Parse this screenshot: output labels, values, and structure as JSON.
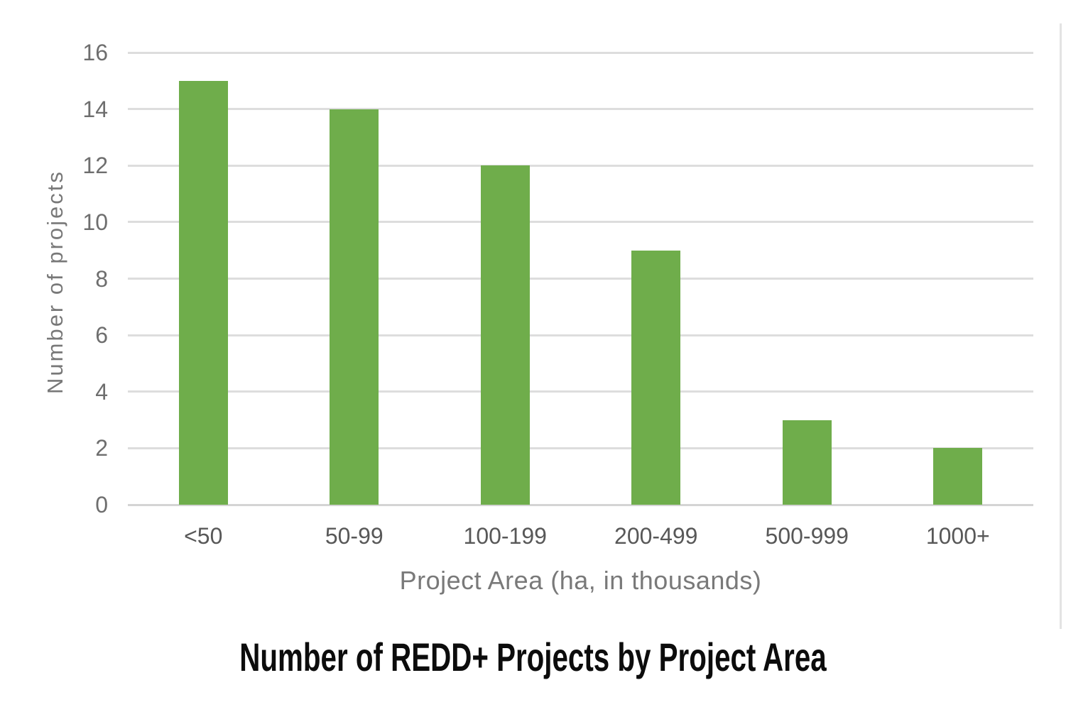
{
  "chart_data": {
    "type": "bar",
    "title": "Number of REDD+ Projects by Project Area",
    "xlabel": "Project Area (ha, in thousands)",
    "ylabel": "Number of projects",
    "categories": [
      "<50",
      "50-99",
      "100-199",
      "200-499",
      "500-999",
      "1000+"
    ],
    "values": [
      15,
      14,
      12,
      9,
      3,
      2
    ],
    "yticks": [
      0,
      2,
      4,
      6,
      8,
      10,
      12,
      14,
      16
    ],
    "ylim": [
      0,
      16
    ],
    "grid": "horizontal-only",
    "legend": "none",
    "bar_color": "#6fad4b",
    "gridline_color": "#dddddd",
    "y_tick_label_color": "#6e6e6e",
    "x_tick_label_color": "#585858",
    "axis_title_color": "#797979",
    "title_color": "#0c0c0c",
    "background_color": "#ffffff"
  }
}
